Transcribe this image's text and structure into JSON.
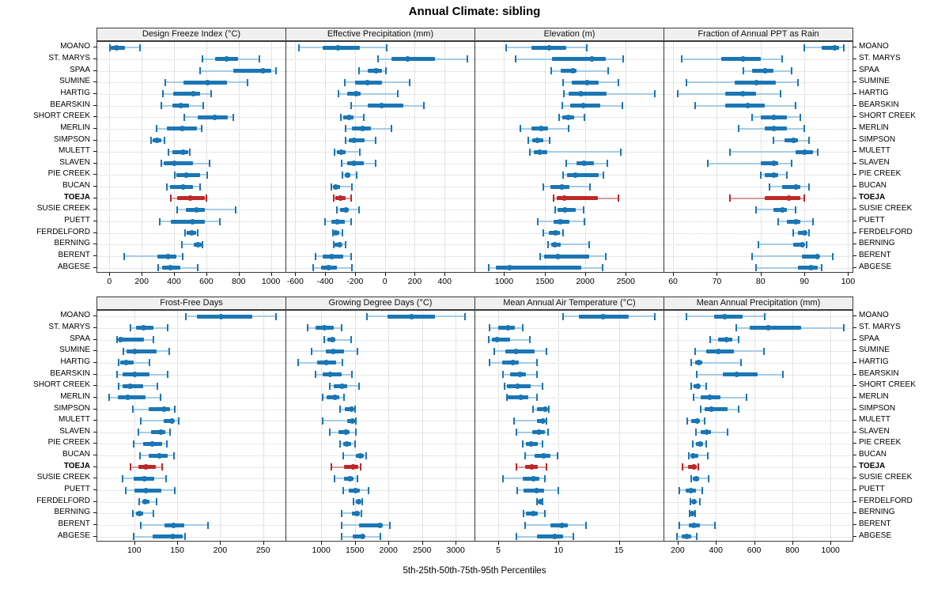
{
  "title": "Annual Climate: sibling",
  "footer": "5th-25th-50th-75th-95th Percentiles",
  "percentile_legend": [
    "5th",
    "25th",
    "50th",
    "75th",
    "95th"
  ],
  "highlight_site": "TOEJA",
  "sites": [
    "MOANO",
    "ST. MARYS",
    "SPAA",
    "SUMINE",
    "HARTIG",
    "BEARSKIN",
    "SHORT CREEK",
    "MERLIN",
    "SIMPSON",
    "MULETT",
    "SLAVEN",
    "PIE CREEK",
    "BUCAN",
    "TOEJA",
    "SUSIE CREEK",
    "PUETT",
    "FERDELFORD",
    "BERNING",
    "BERENT",
    "ABGESE"
  ],
  "colors": {
    "blue": "#1a76b4",
    "blue_light": "#a7cbe5",
    "red": "#bf2727",
    "red_light": "#dd9a9a",
    "grid": "#c9c9c9",
    "strip_bg": "#f0f0f0",
    "border": "#3a3a3a"
  },
  "chart_data": [
    {
      "type": "dot-whisker",
      "title": "Design Freeze Index (°C)",
      "row": 0,
      "col": 0,
      "xlim": [
        -75,
        1090
      ],
      "ticks": [
        0,
        200,
        400,
        600,
        800,
        1000
      ],
      "values": [
        [
          5,
          10,
          45,
          95,
          190
        ],
        [
          575,
          655,
          725,
          795,
          930
        ],
        [
          560,
          765,
          950,
          1000,
          1030
        ],
        [
          345,
          460,
          610,
          730,
          855
        ],
        [
          330,
          395,
          520,
          560,
          630
        ],
        [
          320,
          390,
          440,
          495,
          580
        ],
        [
          465,
          545,
          650,
          735,
          765
        ],
        [
          290,
          355,
          450,
          540,
          570
        ],
        [
          260,
          270,
          295,
          320,
          340
        ],
        [
          365,
          390,
          455,
          490,
          500
        ],
        [
          320,
          335,
          400,
          515,
          620
        ],
        [
          405,
          415,
          475,
          560,
          605
        ],
        [
          355,
          375,
          455,
          515,
          560
        ],
        [
          380,
          420,
          500,
          590,
          600
        ],
        [
          420,
          475,
          540,
          590,
          780
        ],
        [
          310,
          380,
          515,
          590,
          685
        ],
        [
          470,
          480,
          510,
          535,
          545
        ],
        [
          450,
          520,
          550,
          570,
          575
        ],
        [
          90,
          295,
          365,
          415,
          455
        ],
        [
          300,
          325,
          380,
          440,
          545
        ]
      ]
    },
    {
      "type": "dot-whisker",
      "title": "Effective Precipitation (mm)",
      "row": 0,
      "col": 1,
      "xlim": [
        -660,
        600
      ],
      "ticks": [
        -600,
        -400,
        -200,
        0,
        200,
        400
      ],
      "values": [
        [
          -575,
          -415,
          -315,
          -170,
          10
        ],
        [
          -45,
          45,
          150,
          335,
          550
        ],
        [
          -175,
          -115,
          -60,
          -20,
          5
        ],
        [
          -270,
          -200,
          -120,
          -20,
          165
        ],
        [
          -310,
          -255,
          -190,
          -160,
          85
        ],
        [
          -225,
          -115,
          -20,
          125,
          260
        ],
        [
          -295,
          -280,
          -240,
          -210,
          -140
        ],
        [
          -265,
          -220,
          -150,
          -95,
          45
        ],
        [
          -265,
          -240,
          -210,
          -135,
          -60
        ],
        [
          -335,
          -320,
          -290,
          -265,
          -170
        ],
        [
          -290,
          -255,
          -210,
          -140,
          -60
        ],
        [
          -285,
          -270,
          -250,
          -230,
          -190
        ],
        [
          -360,
          -350,
          -330,
          -300,
          -220
        ],
        [
          -345,
          -330,
          -300,
          -265,
          -225
        ],
        [
          -320,
          -300,
          -260,
          -240,
          -175
        ],
        [
          -400,
          -360,
          -320,
          -270,
          -225
        ],
        [
          -350,
          -340,
          -330,
          -305,
          -285
        ],
        [
          -345,
          -335,
          -305,
          -295,
          -265
        ],
        [
          -465,
          -415,
          -355,
          -280,
          -225
        ],
        [
          -480,
          -425,
          -375,
          -320,
          -220
        ]
      ]
    },
    {
      "type": "dot-whisker",
      "title": "Elevation (m)",
      "row": 0,
      "col": 2,
      "xlim": [
        645,
        2965
      ],
      "ticks": [
        1000,
        1500,
        2000,
        2500
      ],
      "values": [
        [
          1030,
          1340,
          1560,
          1770,
          2020
        ],
        [
          1140,
          1590,
          2080,
          2250,
          2470
        ],
        [
          1585,
          1700,
          1850,
          1895,
          2285
        ],
        [
          1730,
          1835,
          2020,
          2170,
          2410
        ],
        [
          1740,
          1795,
          1950,
          2265,
          2860
        ],
        [
          1720,
          1815,
          1980,
          2185,
          2460
        ],
        [
          1680,
          1720,
          1795,
          1860,
          1990
        ],
        [
          1205,
          1335,
          1455,
          1545,
          1795
        ],
        [
          1300,
          1350,
          1415,
          1480,
          1560
        ],
        [
          1320,
          1365,
          1440,
          1530,
          2440
        ],
        [
          1770,
          1895,
          1990,
          2105,
          2275
        ],
        [
          1730,
          1780,
          1875,
          2170,
          2225
        ],
        [
          1480,
          1570,
          1710,
          1805,
          2060
        ],
        [
          1610,
          1650,
          1745,
          2160,
          2410
        ],
        [
          1630,
          1660,
          1755,
          1885,
          1985
        ],
        [
          1415,
          1610,
          1690,
          1805,
          1990
        ],
        [
          1480,
          1555,
          1635,
          1690,
          1730
        ],
        [
          1545,
          1580,
          1620,
          1700,
          2050
        ],
        [
          1440,
          1495,
          1660,
          2050,
          2250
        ],
        [
          810,
          900,
          1070,
          1950,
          2215
        ]
      ]
    },
    {
      "type": "dot-whisker",
      "title": "Fraction of Annual PPT as Rain",
      "row": 0,
      "col": 3,
      "xlim": [
        58,
        101
      ],
      "ticks": [
        60,
        70,
        80,
        90,
        100
      ],
      "values": [
        [
          90,
          94,
          97,
          98,
          99
        ],
        [
          62,
          71,
          76,
          80,
          85
        ],
        [
          76,
          78,
          81,
          83,
          87
        ],
        [
          63,
          74,
          79,
          83.5,
          88.5
        ],
        [
          61,
          72,
          76,
          79,
          84.5
        ],
        [
          65,
          72,
          77,
          81,
          88
        ],
        [
          78,
          80,
          83,
          86,
          89
        ],
        [
          75,
          81,
          83,
          86,
          90
        ],
        [
          83,
          85.5,
          87.5,
          88.5,
          91
        ],
        [
          73,
          88,
          90,
          92,
          93
        ],
        [
          68,
          80,
          83,
          84,
          87
        ],
        [
          80,
          81,
          83,
          84,
          86
        ],
        [
          82,
          85,
          88,
          89,
          91
        ],
        [
          73,
          81,
          86.5,
          89,
          90
        ],
        [
          79,
          83,
          85,
          86,
          88
        ],
        [
          84,
          86,
          88,
          89,
          92
        ],
        [
          87.5,
          88.5,
          90,
          90.5,
          91
        ],
        [
          79.5,
          87.5,
          89.5,
          90,
          90.5
        ],
        [
          78,
          89.5,
          93,
          93.5,
          96.5
        ],
        [
          79,
          88.5,
          91.5,
          93,
          94
        ]
      ]
    },
    {
      "type": "dot-whisker",
      "title": "Frost-Free Days",
      "row": 1,
      "col": 0,
      "xlim": [
        57,
        276
      ],
      "ticks": [
        100,
        150,
        200,
        250
      ],
      "values": [
        [
          160,
          173,
          201,
          237,
          265
        ],
        [
          96,
          102,
          111,
          122,
          139
        ],
        [
          80,
          82,
          84,
          111,
          122
        ],
        [
          87,
          91,
          101,
          126,
          141
        ],
        [
          82,
          84,
          91,
          99,
          118
        ],
        [
          80,
          86,
          101,
          118,
          139
        ],
        [
          82,
          86,
          95,
          110,
          127
        ],
        [
          71,
          81,
          92,
          113,
          131
        ],
        [
          98,
          117,
          135,
          142,
          147
        ],
        [
          108,
          134,
          144,
          146,
          152
        ],
        [
          105,
          120,
          131,
          136,
          142
        ],
        [
          99,
          110,
          121,
          132,
          138
        ],
        [
          107,
          117,
          129,
          139,
          146
        ],
        [
          96,
          105,
          114,
          125,
          132
        ],
        [
          86,
          99,
          112,
          123,
          137
        ],
        [
          90,
          100,
          114,
          132,
          147
        ],
        [
          106,
          109,
          113,
          118,
          126
        ],
        [
          98,
          102,
          106,
          110,
          122
        ],
        [
          108,
          135,
          146,
          158,
          186
        ],
        [
          99,
          121,
          145,
          156,
          159
        ]
      ]
    },
    {
      "type": "dot-whisker",
      "title": "Growing Degree Days (°C)",
      "row": 1,
      "col": 1,
      "xlim": [
        480,
        3280
      ],
      "ticks": [
        1000,
        1500,
        2000,
        2500,
        3000
      ],
      "values": [
        [
          1680,
          1990,
          2340,
          2690,
          3140
        ],
        [
          795,
          910,
          1050,
          1185,
          1300
        ],
        [
          1040,
          1090,
          1170,
          1215,
          1445
        ],
        [
          855,
          1065,
          1185,
          1335,
          1535
        ],
        [
          655,
          935,
          1070,
          1225,
          1315
        ],
        [
          910,
          1025,
          1135,
          1300,
          1460
        ],
        [
          1130,
          1185,
          1305,
          1390,
          1560
        ],
        [
          1025,
          1080,
          1205,
          1265,
          1340
        ],
        [
          1285,
          1355,
          1445,
          1480,
          1500
        ],
        [
          1025,
          1390,
          1460,
          1500,
          1510
        ],
        [
          1130,
          1255,
          1370,
          1420,
          1520
        ],
        [
          1285,
          1325,
          1385,
          1445,
          1500
        ],
        [
          1325,
          1520,
          1575,
          1630,
          1665
        ],
        [
          1145,
          1340,
          1470,
          1550,
          1590
        ],
        [
          1195,
          1340,
          1430,
          1480,
          1540
        ],
        [
          1325,
          1405,
          1510,
          1570,
          1705
        ],
        [
          1480,
          1510,
          1555,
          1590,
          1615
        ],
        [
          1300,
          1460,
          1535,
          1575,
          1600
        ],
        [
          1300,
          1560,
          1875,
          1915,
          2025
        ],
        [
          1300,
          1470,
          1620,
          1650,
          1875
        ]
      ]
    },
    {
      "type": "dot-whisker",
      "title": "Mean Annual Air Temperature (°C)",
      "row": 1,
      "col": 2,
      "xlim": [
        3.1,
        18.7
      ],
      "ticks": [
        5,
        10,
        15
      ],
      "values": [
        [
          10.4,
          11.7,
          13.7,
          15.8,
          18
        ],
        [
          4.3,
          5,
          5.8,
          6.4,
          7
        ],
        [
          4.2,
          4.5,
          4.9,
          6,
          7.6
        ],
        [
          4.7,
          5.6,
          6.5,
          8,
          9
        ],
        [
          4.3,
          5.3,
          6.2,
          6.7,
          8.2
        ],
        [
          5.4,
          6,
          6.8,
          7.3,
          8.2
        ],
        [
          5.5,
          5.7,
          6.6,
          7.7,
          8.7
        ],
        [
          5.7,
          5.8,
          6.9,
          7.5,
          8.2
        ],
        [
          7.9,
          8.2,
          8.9,
          9,
          9.2
        ],
        [
          6.3,
          8.2,
          8.7,
          8.9,
          9
        ],
        [
          6.5,
          7.8,
          8.4,
          8.9,
          9.1
        ],
        [
          7,
          7.3,
          7.7,
          8.3,
          8.7
        ],
        [
          7.2,
          8,
          8.8,
          9.3,
          9.9
        ],
        [
          6.5,
          7.2,
          7.8,
          8.3,
          9
        ],
        [
          5.4,
          7,
          7.9,
          8.4,
          8.9
        ],
        [
          6.6,
          7.1,
          8.2,
          8.8,
          10
        ],
        [
          8.2,
          8.3,
          8.5,
          8.6,
          8.7
        ],
        [
          7.1,
          7.3,
          7.9,
          8.3,
          8.9
        ],
        [
          7.2,
          9.3,
          10.3,
          10.8,
          12.3
        ],
        [
          6.5,
          8.2,
          9.7,
          10.4,
          11.2
        ]
      ]
    },
    {
      "type": "dot-whisker",
      "title": "Mean Annual Precipitation (mm)",
      "row": 1,
      "col": 3,
      "xlim": [
        130,
        1115
      ],
      "ticks": [
        200,
        400,
        600,
        800,
        1000
      ],
      "values": [
        [
          245,
          390,
          445,
          540,
          655
        ],
        [
          505,
          575,
          675,
          845,
          1070
        ],
        [
          370,
          410,
          455,
          485,
          520
        ],
        [
          290,
          350,
          415,
          495,
          650
        ],
        [
          270,
          290,
          308,
          330,
          530
        ],
        [
          300,
          435,
          510,
          620,
          750
        ],
        [
          270,
          283,
          305,
          318,
          350
        ],
        [
          285,
          320,
          370,
          425,
          560
        ],
        [
          320,
          340,
          375,
          460,
          520
        ],
        [
          250,
          270,
          300,
          315,
          340
        ],
        [
          295,
          320,
          350,
          375,
          460
        ],
        [
          277,
          295,
          318,
          332,
          350
        ],
        [
          257,
          266,
          283,
          307,
          358
        ],
        [
          225,
          255,
          284,
          300,
          308
        ],
        [
          270,
          280,
          298,
          312,
          362
        ],
        [
          210,
          243,
          270,
          294,
          330
        ],
        [
          266,
          276,
          284,
          297,
          318
        ],
        [
          262,
          269,
          277,
          287,
          290
        ],
        [
          210,
          260,
          287,
          315,
          393
        ],
        [
          197,
          220,
          248,
          270,
          298
        ]
      ]
    }
  ]
}
